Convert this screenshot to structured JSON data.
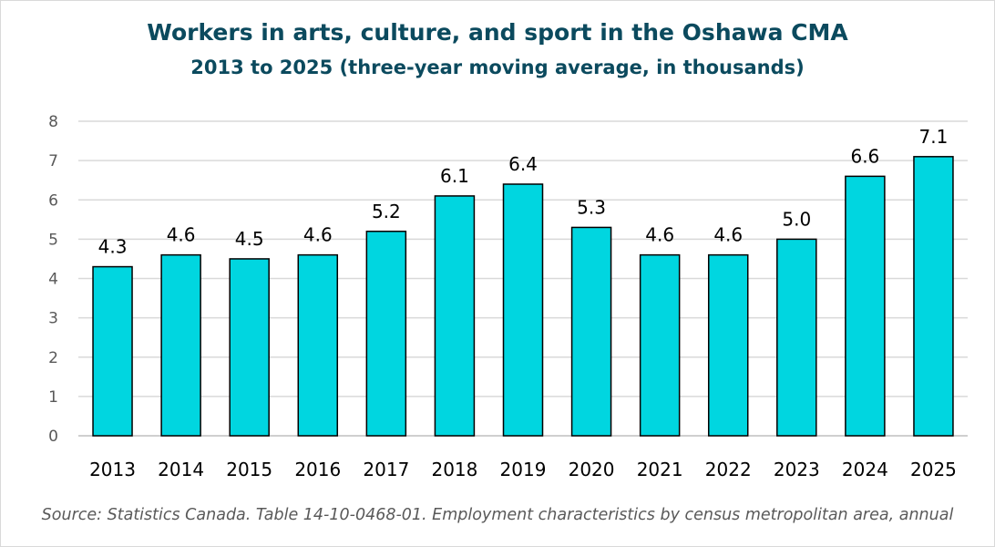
{
  "chart_data": {
    "type": "bar",
    "title": "Workers in arts, culture, and sport in the Oshawa CMA",
    "subtitle": "2013 to 2025 (three-year moving average, in thousands)",
    "categories": [
      "2013",
      "2014",
      "2015",
      "2016",
      "2017",
      "2018",
      "2019",
      "2020",
      "2021",
      "2022",
      "2023",
      "2024",
      "2025"
    ],
    "values": [
      4.3,
      4.6,
      4.5,
      4.6,
      5.2,
      6.1,
      6.4,
      5.3,
      4.6,
      4.6,
      5.0,
      6.6,
      7.1
    ],
    "value_labels": [
      "4.3",
      "4.6",
      "4.5",
      "4.6",
      "5.2",
      "6.1",
      "6.4",
      "5.3",
      "4.6",
      "4.6",
      "5.0",
      "6.6",
      "7.1"
    ],
    "ylim": [
      0,
      8
    ],
    "yticks": [
      "0",
      "1",
      "2",
      "3",
      "4",
      "5",
      "6",
      "7",
      "8"
    ],
    "xlabel": "",
    "ylabel": "",
    "grid": true,
    "legend": "none",
    "colors": {
      "bar_fill": "#00d6e0",
      "bar_stroke": "#000000",
      "title": "#0b4a5e",
      "gridline": "#d9d9d9"
    }
  },
  "source": "Source: Statistics Canada. Table 14-10-0468-01. Employment characteristics by census metropolitan area, annual"
}
